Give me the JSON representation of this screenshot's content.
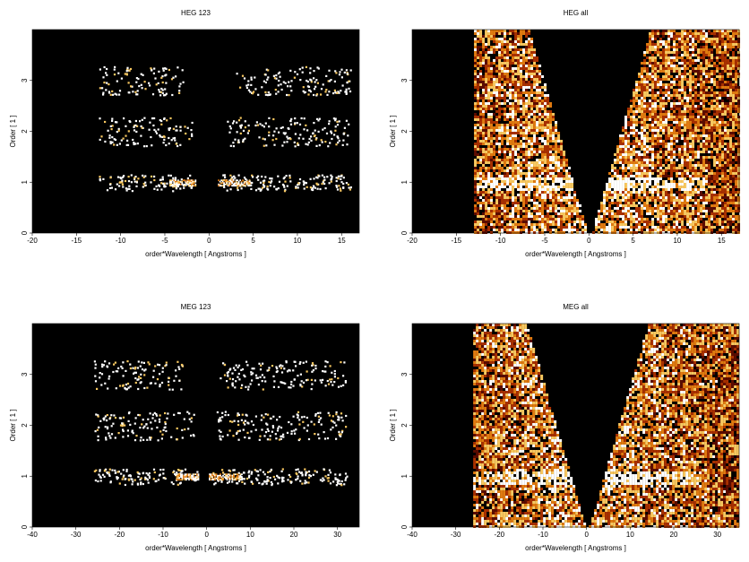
{
  "chart_data": [
    {
      "type": "heatmap",
      "title": "HEG 123",
      "xlabel": "order*Wavelength [ Angstroms ]",
      "ylabel": "Order [ 1 ]",
      "xlim": [
        -20,
        17
      ],
      "ylim": [
        0,
        4
      ],
      "xticks": [
        -20,
        -15,
        -10,
        -5,
        0,
        5,
        10,
        15
      ],
      "yticks": [
        0,
        1,
        2,
        3
      ],
      "pattern": "orders",
      "bands": [
        {
          "order": 1,
          "x_ranges": [
            [
              -12.5,
              -2.0
            ],
            [
              1.5,
              16.0
            ]
          ],
          "bright_ranges": [
            [
              -4.5,
              -1.5
            ],
            [
              1.0,
              4.5
            ]
          ]
        },
        {
          "order": 2,
          "x_ranges": [
            [
              -12.5,
              -2.0
            ],
            [
              2.0,
              16.0
            ]
          ]
        },
        {
          "order": 3,
          "x_ranges": [
            [
              -12.5,
              -3.0
            ],
            [
              3.0,
              16.0
            ]
          ]
        }
      ],
      "colormap": [
        "#000000",
        "#5c0c00",
        "#a83000",
        "#e07a10",
        "#f8c860",
        "#ffffff"
      ],
      "background": "#000000"
    },
    {
      "type": "heatmap",
      "title": "HEG all",
      "xlabel": "order*Wavelength [ Angstroms ]",
      "ylabel": "Order [ 1 ]",
      "xlim": [
        -20,
        17
      ],
      "ylim": [
        0,
        4
      ],
      "xticks": [
        -20,
        -15,
        -10,
        -5,
        0,
        5,
        10,
        15
      ],
      "yticks": [
        0,
        1,
        2,
        3
      ],
      "pattern": "all",
      "x_extent": [
        -13,
        17
      ],
      "bright_line_order": 1,
      "colormap": [
        "#000000",
        "#5c0c00",
        "#a83000",
        "#e07a10",
        "#f8c860",
        "#ffffff"
      ],
      "background": "#000000"
    },
    {
      "type": "heatmap",
      "title": "MEG 123",
      "xlabel": "order*Wavelength [ Angstroms ]",
      "ylabel": "Order [ 1 ]",
      "xlim": [
        -40,
        35
      ],
      "ylim": [
        0,
        4
      ],
      "xticks": [
        -40,
        -30,
        -20,
        -10,
        0,
        10,
        20,
        30
      ],
      "yticks": [
        0,
        1,
        2,
        3
      ],
      "pattern": "orders",
      "bands": [
        {
          "order": 1,
          "x_ranges": [
            [
              -26,
              -2.0
            ],
            [
              1.0,
              32
            ]
          ],
          "bright_ranges": [
            [
              -7,
              -2
            ],
            [
              0.5,
              8
            ]
          ]
        },
        {
          "order": 2,
          "x_ranges": [
            [
              -26,
              -3.0
            ],
            [
              2.0,
              32
            ]
          ]
        },
        {
          "order": 3,
          "x_ranges": [
            [
              -26,
              -5.0
            ],
            [
              3.0,
              32
            ]
          ]
        }
      ],
      "colormap": [
        "#000000",
        "#5c0c00",
        "#a83000",
        "#e07a10",
        "#f8c860",
        "#ffffff"
      ],
      "background": "#000000"
    },
    {
      "type": "heatmap",
      "title": "MEG all",
      "xlabel": "order*Wavelength [ Angstroms ]",
      "ylabel": "Order [ 1 ]",
      "xlim": [
        -40,
        35
      ],
      "ylim": [
        0,
        4
      ],
      "xticks": [
        -40,
        -30,
        -20,
        -10,
        0,
        10,
        20,
        30
      ],
      "yticks": [
        0,
        1,
        2,
        3
      ],
      "pattern": "all",
      "x_extent": [
        -26,
        35
      ],
      "bright_line_order": 1,
      "colormap": [
        "#000000",
        "#5c0c00",
        "#a83000",
        "#e07a10",
        "#f8c860",
        "#ffffff"
      ],
      "background": "#000000"
    }
  ]
}
